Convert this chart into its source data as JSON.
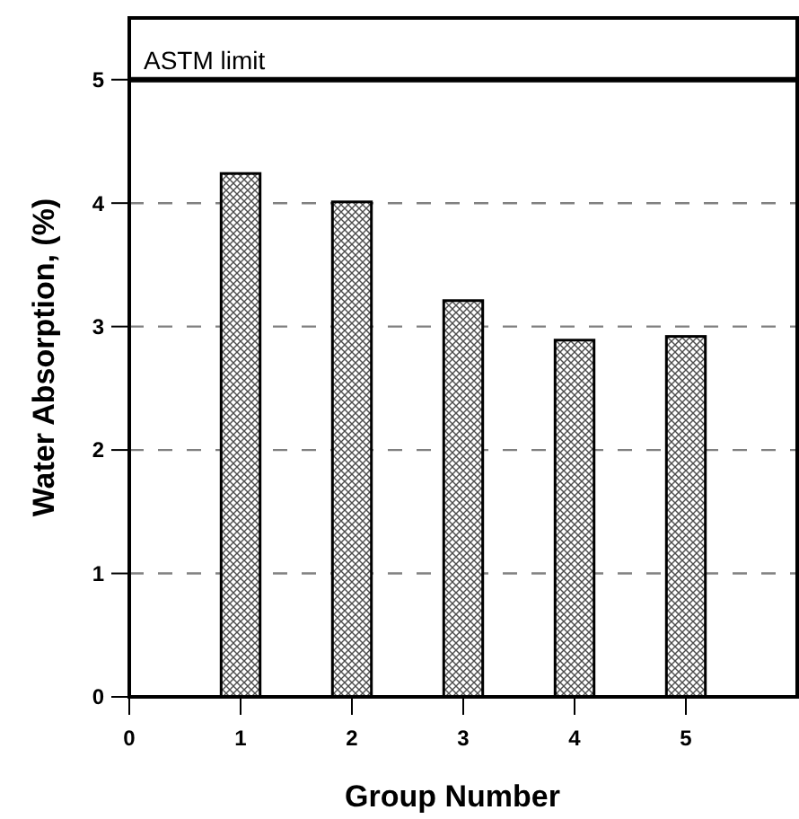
{
  "chart_data": {
    "type": "bar",
    "xlabel": "Group Number",
    "ylabel": "Water Absorption, (%)",
    "x": [
      1,
      2,
      3,
      4,
      5
    ],
    "values": [
      4.24,
      4.01,
      3.21,
      2.89,
      2.92
    ],
    "color": "#000000",
    "xlim": [
      0,
      6
    ],
    "xticks": [
      0,
      1,
      2,
      3,
      4,
      5
    ],
    "ylim": [
      0,
      5.5
    ],
    "yticks": [
      0,
      1,
      2,
      3,
      4,
      5
    ],
    "grid": "y",
    "ref_lines": [
      {
        "axis": "y",
        "value": 5,
        "label": "ASTM limit",
        "color": "#000000"
      }
    ]
  }
}
